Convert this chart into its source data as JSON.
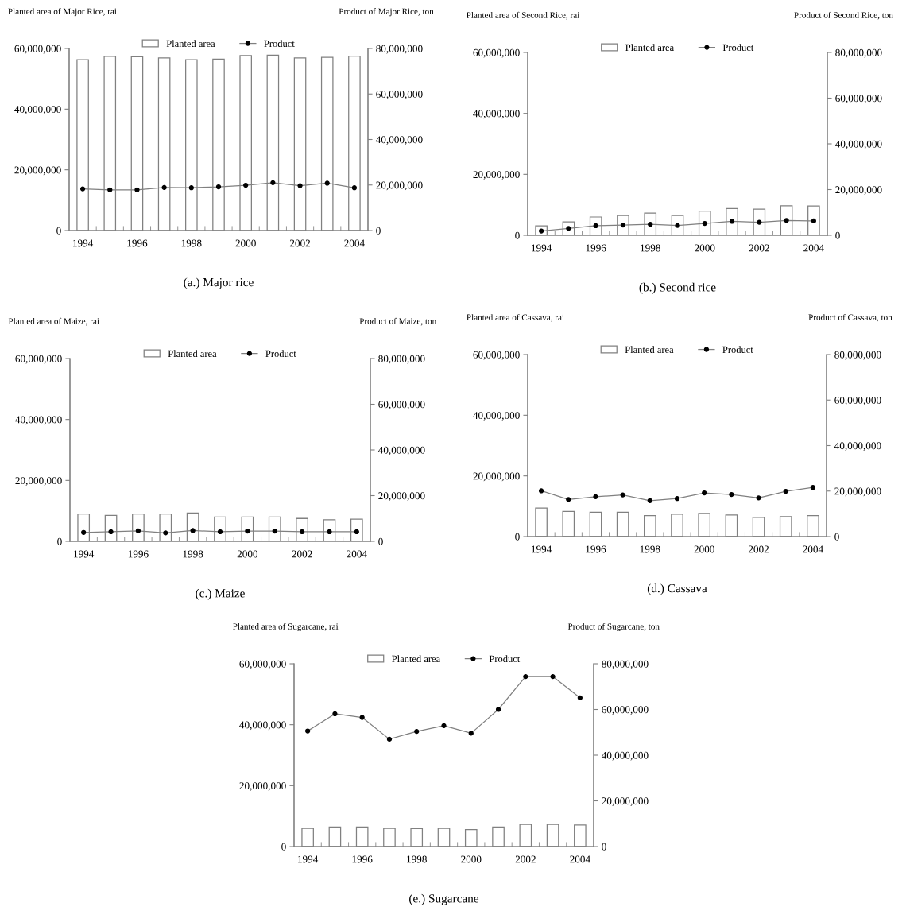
{
  "chart_data": [
    {
      "type": "bar",
      "title": "(a.) Major rice",
      "ylabel": "Planted area of Major Rice, rai",
      "y2label": "Product of Major Rice, ton",
      "categories": [
        "1994",
        null,
        "1996",
        null,
        "1998",
        null,
        "2000",
        null,
        "2002",
        null,
        "2004"
      ],
      "legend": "top",
      "marker": "circle",
      "series": [
        {
          "name": "Planted area",
          "color": "#ffffff",
          "values": [
            56300000,
            57400000,
            57300000,
            56900000,
            56300000,
            56500000,
            57700000,
            57800000,
            56900000,
            57100000,
            57500000
          ]
        },
        {
          "name": "Product",
          "type": "line",
          "axis": "y2",
          "color": "#808080",
          "values": [
            18300000,
            17900000,
            17900000,
            18900000,
            18800000,
            19200000,
            19900000,
            21000000,
            19700000,
            20800000,
            18800000
          ]
        }
      ],
      "ylim": [
        0,
        60000000
      ],
      "yticks": [
        0,
        {
          "value": 20000000,
          "label": "20,000,000"
        },
        {
          "value": 40000000,
          "label": "40,000,000"
        },
        {
          "value": 60000000,
          "label": "60,000,000"
        }
      ],
      "y2lim": [
        0,
        80000000
      ],
      "y2ticks": [
        0,
        {
          "value": 20000000,
          "label": "20,000,000"
        },
        {
          "value": 40000000,
          "label": "40,000,000"
        },
        {
          "value": 60000000,
          "label": "60,000,000"
        },
        {
          "value": 80000000,
          "label": "80,000,000"
        }
      ]
    },
    {
      "type": "bar",
      "title": "(b.) Second rice",
      "ylabel": "Planted area of Second Rice, rai",
      "y2label": "Product of Second Rice, ton",
      "categories": [
        "1994",
        null,
        "1996",
        null,
        "1998",
        null,
        "2000",
        null,
        "2002",
        null,
        "2004"
      ],
      "legend": "top",
      "marker": "circle",
      "series": [
        {
          "name": "Planted area",
          "color": "#ffffff",
          "values": [
            3100000,
            4400000,
            6000000,
            6500000,
            7300000,
            6500000,
            7900000,
            8800000,
            8600000,
            9700000,
            9600000
          ]
        },
        {
          "name": "Product",
          "type": "line",
          "axis": "y2",
          "color": "#808080",
          "values": [
            1900000,
            3000000,
            4200000,
            4500000,
            4800000,
            4300000,
            5200000,
            6100000,
            5700000,
            6500000,
            6300000
          ]
        }
      ],
      "ylim": [
        0,
        60000000
      ],
      "yticks": [
        0,
        {
          "value": 20000000,
          "label": "20,000,000"
        },
        {
          "value": 40000000,
          "label": "40,000,000"
        },
        {
          "value": 60000000,
          "label": "60,000,000"
        }
      ],
      "y2lim": [
        0,
        80000000
      ],
      "y2ticks": [
        0,
        {
          "value": 20000000,
          "label": "20,000,000"
        },
        {
          "value": 40000000,
          "label": "40,000,000"
        },
        {
          "value": 60000000,
          "label": "60,000,000"
        },
        {
          "value": 80000000,
          "label": "80,000,000"
        }
      ]
    },
    {
      "type": "bar",
      "title": "(c.) Maize",
      "ylabel": "Planted area of Maize, rai",
      "y2label": "Product of Maize, ton",
      "categories": [
        "1994",
        null,
        "1996",
        null,
        "1998",
        null,
        "2000",
        null,
        "2002",
        null,
        "2004"
      ],
      "legend": "top",
      "marker": "circle",
      "series": [
        {
          "name": "Planted area",
          "color": "#ffffff",
          "values": [
            9000000,
            8500000,
            9000000,
            9000000,
            9300000,
            8000000,
            8000000,
            8000000,
            7500000,
            7100000,
            7300000
          ]
        },
        {
          "name": "Product",
          "type": "line",
          "axis": "y2",
          "color": "#808080",
          "values": [
            3900000,
            4200000,
            4600000,
            3700000,
            4700000,
            4200000,
            4500000,
            4500000,
            4200000,
            4200000,
            4200000
          ]
        }
      ],
      "ylim": [
        0,
        60000000
      ],
      "yticks": [
        0,
        {
          "value": 20000000,
          "label": "20,000,000"
        },
        {
          "value": 40000000,
          "label": "40,000,000"
        },
        {
          "value": 60000000,
          "label": "60,000,000"
        }
      ],
      "y2lim": [
        0,
        80000000
      ],
      "y2ticks": [
        0,
        {
          "value": 20000000,
          "label": "20,000,000"
        },
        {
          "value": 40000000,
          "label": "40,000,000"
        },
        {
          "value": 60000000,
          "label": "60,000,000"
        },
        {
          "value": 80000000,
          "label": "80,000,000"
        }
      ]
    },
    {
      "type": "bar",
      "title": "(d.) Cassava",
      "ylabel": "Planted area of Cassava, rai",
      "y2label": "Product of Cassava, ton",
      "categories": [
        "1994",
        null,
        "1996",
        null,
        "1998",
        null,
        "2000",
        null,
        "2002",
        null,
        "2004"
      ],
      "legend": "top",
      "marker": "circle",
      "series": [
        {
          "name": "Planted area",
          "color": "#ffffff",
          "values": [
            9400000,
            8300000,
            8000000,
            8000000,
            6900000,
            7400000,
            7600000,
            7100000,
            6300000,
            6600000,
            6900000
          ]
        },
        {
          "name": "Product",
          "type": "line",
          "axis": "y2",
          "color": "#808080",
          "values": [
            20100000,
            16300000,
            17500000,
            18300000,
            15800000,
            16700000,
            19200000,
            18500000,
            17000000,
            19900000,
            21600000
          ]
        }
      ],
      "ylim": [
        0,
        60000000
      ],
      "yticks": [
        0,
        {
          "value": 20000000,
          "label": "20,000,000"
        },
        {
          "value": 40000000,
          "label": "40,000,000"
        },
        {
          "value": 60000000,
          "label": "60,000,000"
        }
      ],
      "y2lim": [
        0,
        80000000
      ],
      "y2ticks": [
        0,
        {
          "value": 20000000,
          "label": "20,000,000"
        },
        {
          "value": 40000000,
          "label": "40,000,000"
        },
        {
          "value": 60000000,
          "label": "60,000,000"
        },
        {
          "value": 80000000,
          "label": "80,000,000"
        }
      ]
    },
    {
      "type": "bar",
      "title": "(e.) Sugarcane",
      "ylabel": "Planted area of Sugarcane, rai",
      "y2label": "Product of Sugarcane, ton",
      "categories": [
        "1994",
        null,
        "1996",
        null,
        "1998",
        null,
        "2000",
        null,
        "2002",
        null,
        "2004"
      ],
      "legend": "top",
      "marker": "circle",
      "series": [
        {
          "name": "Planted area",
          "color": "#ffffff",
          "values": [
            6000000,
            6400000,
            6400000,
            6000000,
            5900000,
            6000000,
            5600000,
            6400000,
            7300000,
            7300000,
            7100000
          ]
        },
        {
          "name": "Product",
          "type": "line",
          "axis": "y2",
          "color": "#808080",
          "values": [
            50600000,
            58100000,
            56500000,
            47000000,
            50400000,
            52900000,
            49600000,
            60000000,
            74400000,
            74400000,
            65100000
          ]
        }
      ],
      "ylim": [
        0,
        60000000
      ],
      "yticks": [
        0,
        {
          "value": 20000000,
          "label": "20,000,000"
        },
        {
          "value": 40000000,
          "label": "40,000,000"
        },
        {
          "value": 60000000,
          "label": "60,000,000"
        }
      ],
      "y2lim": [
        0,
        80000000
      ],
      "y2ticks": [
        0,
        {
          "value": 20000000,
          "label": "20,000,000"
        },
        {
          "value": 40000000,
          "label": "40,000,000"
        },
        {
          "value": 60000000,
          "label": "60,000,000"
        },
        {
          "value": 80000000,
          "label": "80,000,000"
        }
      ]
    }
  ]
}
